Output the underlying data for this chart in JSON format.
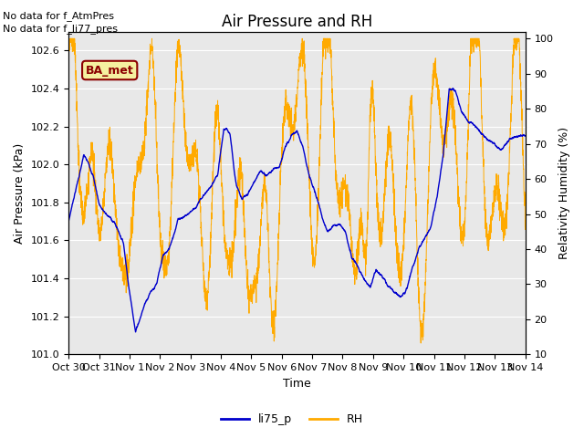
{
  "title": "Air Pressure and RH",
  "xlabel": "Time",
  "ylabel_left": "Air Pressure (kPa)",
  "ylabel_right": "Relativity Humidity (%)",
  "text_no_data_1": "No data for f_AtmPres",
  "text_no_data_2": "No data for f_li77_pres",
  "ba_met_label": "BA_met",
  "legend_entries": [
    "li75_p",
    "RH"
  ],
  "line_color_blue": "#0000cc",
  "line_color_orange": "#ffaa00",
  "background_color": "#e8e8e8",
  "ylim_left": [
    101.0,
    102.7
  ],
  "ylim_right": [
    10,
    102
  ],
  "yticks_left": [
    101.0,
    101.2,
    101.4,
    101.6,
    101.8,
    102.0,
    102.2,
    102.4,
    102.6
  ],
  "yticks_right": [
    10,
    20,
    30,
    40,
    50,
    60,
    70,
    80,
    90,
    100
  ],
  "xtick_labels": [
    "Oct 30",
    "Oct 31",
    "Nov 1",
    "Nov 2",
    "Nov 3",
    "Nov 4",
    "Nov 5",
    "Nov 6",
    "Nov 7",
    "Nov 8",
    "Nov 9",
    "Nov 10",
    "Nov 11",
    "Nov 12",
    "Nov 13",
    "Nov 14"
  ],
  "grid_color": "#ffffff",
  "title_fontsize": 12,
  "label_fontsize": 9,
  "tick_fontsize": 8,
  "nodata_fontsize": 8,
  "ba_met_fontsize": 9
}
